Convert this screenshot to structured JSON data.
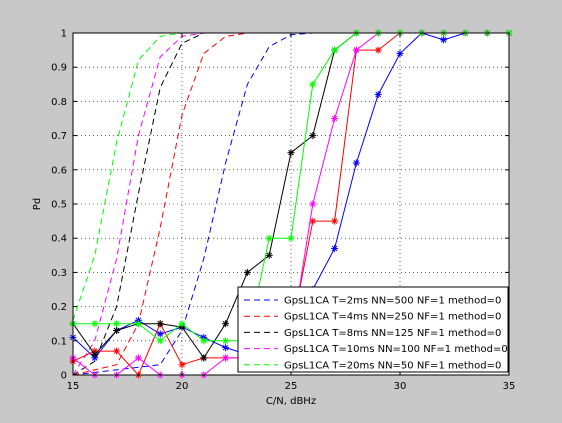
{
  "chart_data": {
    "type": "line",
    "xlabel": "C/N, dBHz",
    "ylabel": "Pd",
    "xlim": [
      15,
      35
    ],
    "ylim": [
      0,
      1
    ],
    "xticks": [
      15,
      20,
      25,
      30,
      35
    ],
    "yticks": [
      0,
      0.1,
      0.2,
      0.3,
      0.4,
      0.5,
      0.6,
      0.7,
      0.8,
      0.9,
      1
    ],
    "grid": "dotted",
    "legend_position": "bottom-right",
    "theoretical": [
      {
        "color": "#0000ff",
        "x": [
          15,
          19,
          20,
          21,
          22,
          23,
          24,
          25,
          26,
          35
        ],
        "y": [
          0,
          0.03,
          0.13,
          0.34,
          0.62,
          0.85,
          0.96,
          0.995,
          1,
          1
        ]
      },
      {
        "color": "#ff0000",
        "x": [
          15,
          17,
          18,
          19,
          20,
          21,
          22,
          23,
          24,
          35
        ],
        "y": [
          0,
          0.03,
          0.15,
          0.43,
          0.76,
          0.94,
          0.99,
          1,
          1,
          1
        ]
      },
      {
        "color": "#000000",
        "x": [
          15,
          16,
          17,
          18,
          19,
          20,
          21,
          22,
          35
        ],
        "y": [
          0,
          0.04,
          0.2,
          0.53,
          0.84,
          0.97,
          1,
          1,
          1
        ]
      },
      {
        "color": "#ff00ff",
        "x": [
          15,
          16,
          17,
          18,
          19,
          20,
          21,
          35
        ],
        "y": [
          0,
          0.1,
          0.34,
          0.7,
          0.93,
          0.99,
          1,
          1
        ]
      },
      {
        "color": "#00ff00",
        "x": [
          15,
          16,
          17,
          18,
          19,
          20,
          35
        ],
        "y": [
          0.16,
          0.35,
          0.68,
          0.92,
          0.99,
          1,
          1
        ]
      }
    ],
    "series": [
      {
        "name": "GpsL1CA T=2ms NN=500 NF=1 method=0",
        "color": "#0000ff",
        "x": [
          15,
          16,
          17,
          18,
          19,
          20,
          21,
          22,
          23,
          24,
          25,
          26,
          27,
          28,
          29,
          30,
          31,
          32,
          33,
          34,
          35
        ],
        "y": [
          0.11,
          0.05,
          0.13,
          0.16,
          0.12,
          0.14,
          0.11,
          0.08,
          0.06,
          0.07,
          0.1,
          0.25,
          0.37,
          0.62,
          0.82,
          0.94,
          1,
          0.98,
          1,
          1,
          1
        ]
      },
      {
        "name": "GpsL1CA T=4ms NN=250 NF=1 method=0",
        "color": "#ff0000",
        "x": [
          15,
          16,
          17,
          18,
          19,
          20,
          21,
          22,
          23,
          24,
          25,
          26,
          27,
          28,
          29,
          30,
          31,
          32,
          33,
          34,
          35
        ],
        "y": [
          0.04,
          0.07,
          0.07,
          0.0,
          0.15,
          0.03,
          0.05,
          0.05,
          0.05,
          0.07,
          0.12,
          0.45,
          0.45,
          0.95,
          0.95,
          1,
          1,
          1,
          1,
          1,
          1
        ]
      },
      {
        "name": "GpsL1CA T=8ms NN=125 NF=1 method=0",
        "color": "#000000",
        "x": [
          15,
          16,
          17,
          18,
          19,
          20,
          21,
          22,
          23,
          24,
          25,
          26,
          27,
          28,
          29,
          30,
          31,
          32,
          33,
          34,
          35
        ],
        "y": [
          0.15,
          0.06,
          0.13,
          0.15,
          0.15,
          0.14,
          0.05,
          0.15,
          0.3,
          0.35,
          0.65,
          0.7,
          0.95,
          1,
          1,
          1,
          1,
          1,
          1,
          1,
          1
        ]
      },
      {
        "name": "GpsL1CA T=10ms NN=100 NF=1 method=0",
        "color": "#ff00ff",
        "x": [
          15,
          16,
          17,
          18,
          19,
          20,
          21,
          22,
          23,
          24,
          25,
          26,
          27,
          28,
          29,
          30,
          31,
          32,
          33,
          34,
          35
        ],
        "y": [
          0.05,
          0.0,
          0.0,
          0.05,
          0.0,
          0.0,
          0.0,
          0.05,
          0.05,
          0.07,
          0.1,
          0.5,
          0.75,
          0.95,
          1,
          1,
          1,
          1,
          1,
          1,
          1
        ]
      },
      {
        "name": "GpsL1CA T=20ms NN=50 NF=1 method=0",
        "color": "#00ff00",
        "x": [
          15,
          16,
          17,
          18,
          19,
          20,
          21,
          22,
          23,
          24,
          25,
          26,
          27,
          28,
          29,
          30,
          31,
          32,
          33,
          34,
          35
        ],
        "y": [
          0.15,
          0.15,
          0.15,
          0.15,
          0.1,
          0.15,
          0.1,
          0.1,
          0.1,
          0.4,
          0.4,
          0.85,
          0.95,
          1,
          1,
          1,
          1,
          1,
          1,
          1,
          1
        ]
      }
    ]
  }
}
